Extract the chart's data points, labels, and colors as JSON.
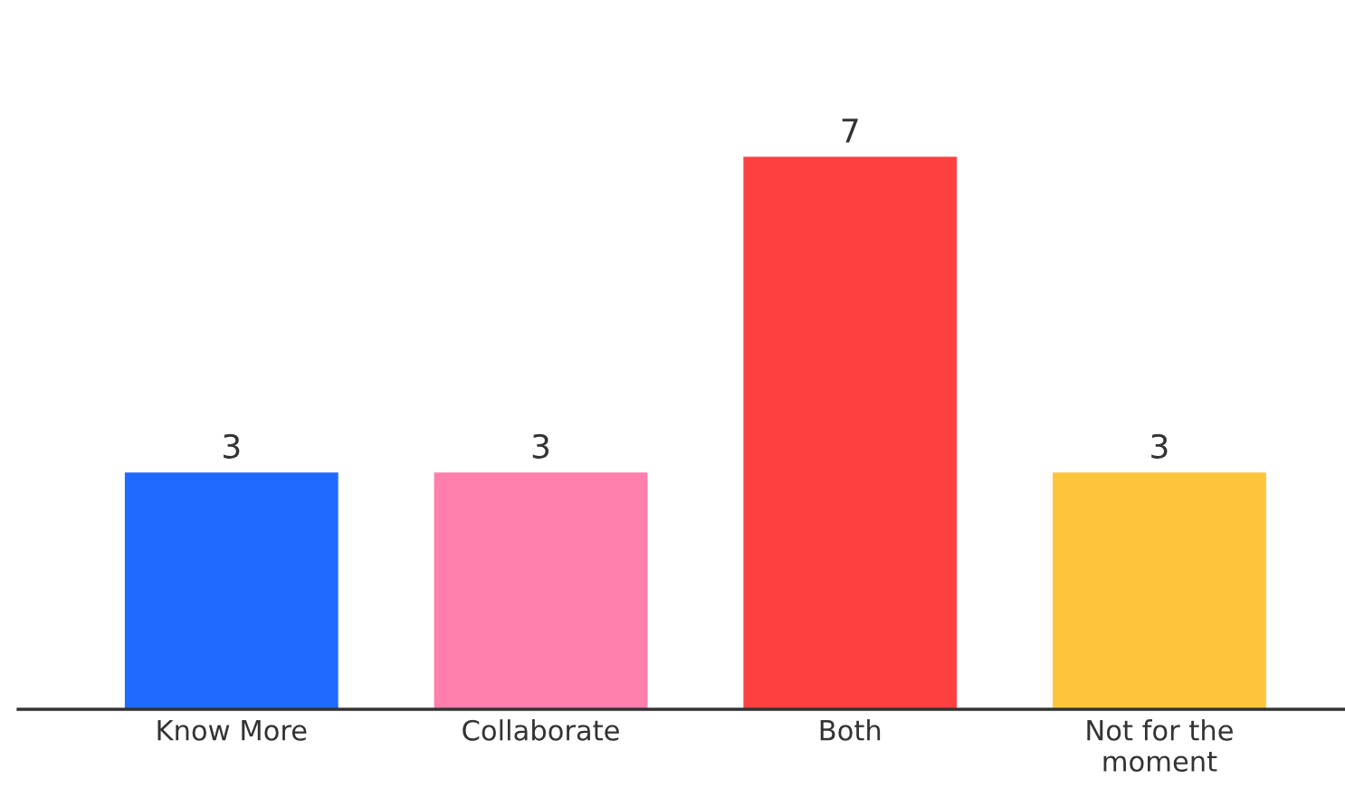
{
  "chart_data": {
    "type": "bar",
    "categories": [
      "Know More",
      "Collaborate",
      "Both",
      "Not for the\nmoment"
    ],
    "values": [
      3,
      3,
      7,
      3
    ],
    "colors": [
      "#1f6bff",
      "#ff7eac",
      "#ff4040",
      "#ffc53a"
    ],
    "data_labels": true,
    "grid": false,
    "legend": false
  }
}
